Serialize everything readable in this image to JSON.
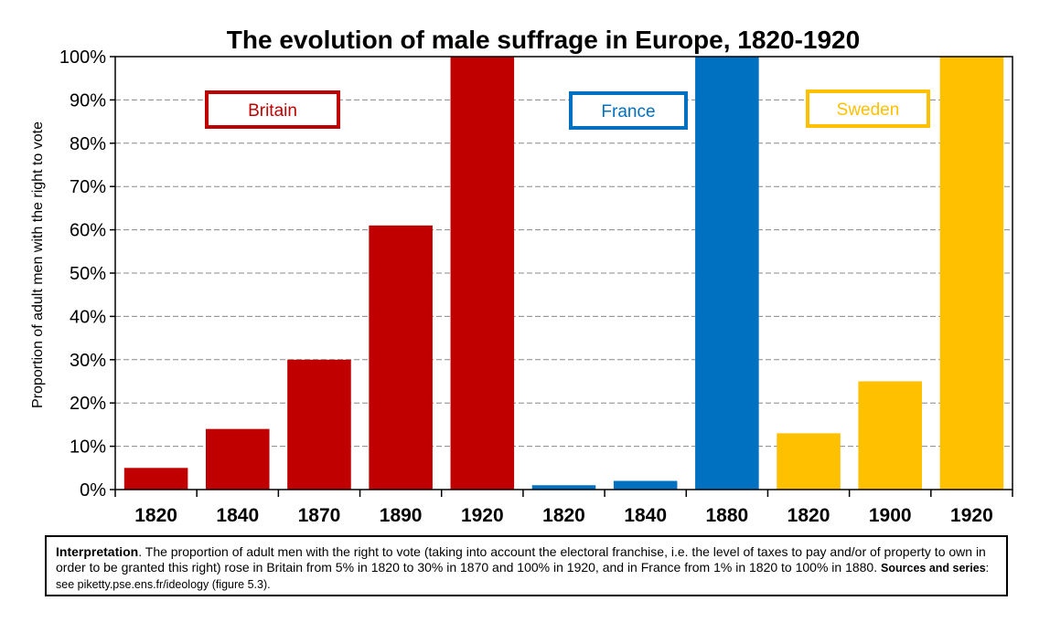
{
  "chart_data": {
    "type": "bar",
    "title": "The evolution of male suffrage in Europe, 1820-1920",
    "ylabel": "Proportion of adult men with the right to vote",
    "xlabel": "",
    "ylim": [
      0,
      100
    ],
    "yticks": [
      "0%",
      "10%",
      "20%",
      "30%",
      "40%",
      "50%",
      "60%",
      "70%",
      "80%",
      "90%",
      "100%"
    ],
    "grid": true,
    "groups": [
      {
        "name": "Britain",
        "color": "#c00000",
        "categories": [
          "1820",
          "1840",
          "1870",
          "1890",
          "1920"
        ],
        "values": [
          5,
          14,
          30,
          61,
          100
        ]
      },
      {
        "name": "France",
        "color": "#0070c0",
        "categories": [
          "1820",
          "1840",
          "1880"
        ],
        "values": [
          1,
          2,
          100
        ]
      },
      {
        "name": "Sweden",
        "color": "#ffc000",
        "categories": [
          "1820",
          "1900",
          "1920"
        ],
        "values": [
          13,
          25,
          100
        ]
      }
    ]
  },
  "note": {
    "label1": "Interpretation",
    "text1": ". The proportion of adult men with the right to vote (taking into account the electoral franchise, i.e. the level of taxes to pay and/or of property to own in order to be granted this right) rose in Britain from 5% in 1820 to 30% in 1870 and 100% in 1920, and in France from 1% in 1820 to 100% in 1880.",
    "label2": "Sources and series",
    "text2": ": see piketty.pse.ens.fr/ideology (figure 5.3)."
  }
}
